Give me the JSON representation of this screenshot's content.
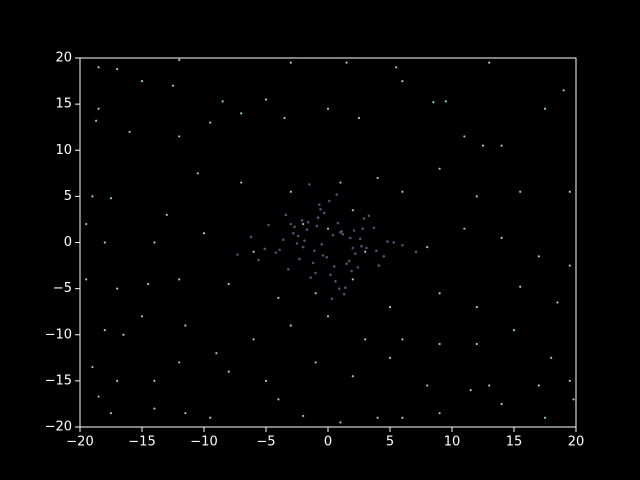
{
  "chart_data": {
    "type": "scatter",
    "series": [
      {
        "color": "#8f8fd0",
        "x": [
          -0.5,
          1.2,
          -2.3,
          0.8,
          3.1,
          -1.7,
          2.4,
          -3.6,
          0.2,
          -0.9,
          1.8,
          -4.2,
          2.9,
          -1.1,
          0.6,
          -2.8,
          4.5,
          -0.3,
          1.5,
          -1.9,
          3.7,
          -5.1,
          0.9,
          -2.1,
          2.2,
          -0.7,
          5.3,
          -3.2,
          1.1,
          -1.4,
          0.4,
          2.7,
          -4.8,
          -0.1,
          3.3,
          -2.5,
          1.9,
          -6.2,
          0.7,
          -1.2,
          2.1,
          -3.9,
          4.1,
          -0.6,
          1.4,
          -2.7,
          6.0,
          -1.6,
          0.3,
          2.6,
          -0.4,
          -3.4,
          1.7,
          4.8,
          -2.0,
          0.1,
          -5.6,
          2.8,
          -1.0,
          3.9,
          -0.8,
          1.3,
          -2.4,
          7.1,
          -3.0,
          0.5,
          -1.5,
          2.0,
          -7.3,
          1.0
        ],
        "y": [
          -0.2,
          0.9,
          -1.8,
          2.1,
          -0.6,
          1.4,
          -2.7,
          0.3,
          -3.5,
          1.8,
          0.5,
          -1.1,
          2.6,
          -0.9,
          -4.2,
          1.0,
          -1.5,
          3.2,
          -2.3,
          0.2,
          1.6,
          -0.7,
          -5.0,
          2.4,
          -1.2,
          4.1,
          0.0,
          -2.9,
          1.2,
          -3.8,
          0.8,
          -0.4,
          1.9,
          -1.6,
          2.9,
          -0.1,
          -3.1,
          0.6,
          5.2,
          -2.2,
          1.3,
          -0.8,
          -2.5,
          3.6,
          -4.9,
          1.7,
          -0.3,
          2.2,
          -6.1,
          0.4,
          -1.4,
          3.0,
          -2.0,
          0.1,
          -0.5,
          4.5,
          -1.9,
          1.5,
          -3.3,
          -0.9,
          2.7,
          -5.6,
          0.7,
          -1.0,
          2.0,
          -2.6,
          6.3,
          -0.6,
          -1.3,
          1.1
        ]
      },
      {
        "color": "#8dd3c7",
        "x": [
          -18.5,
          -17,
          -12,
          -15,
          -12.5,
          -8.5,
          -5,
          -3,
          1.5,
          5.5,
          13,
          19,
          -18.5,
          -18.7,
          -16,
          -12,
          -9.5,
          -7,
          -3.5,
          0,
          2.5,
          6,
          8.5,
          9.5,
          11,
          12.5,
          14,
          17.5,
          -19,
          -17.5,
          -13,
          -10.5,
          -7,
          -3,
          1,
          2,
          4,
          6,
          9,
          12,
          15.5,
          19.5,
          -19.5,
          -18,
          -14,
          -10,
          -6,
          -2,
          0,
          3,
          8,
          11,
          14,
          17,
          19.5,
          -19.5,
          -17,
          -14.5,
          -12,
          -8,
          -4,
          -1,
          2,
          5,
          9,
          12,
          15.5,
          18.5,
          -18,
          -16.5,
          -15,
          -11.5,
          -9,
          -6,
          -3,
          0,
          3,
          6,
          9,
          12,
          15,
          18,
          -19,
          -17,
          -14,
          -12,
          -8,
          -5,
          -1,
          2,
          5,
          8,
          11.5,
          13,
          17,
          19.5,
          -18.5,
          -17.5,
          -14,
          -11.5,
          -9.5,
          -4,
          -2,
          1,
          4,
          6,
          9,
          14,
          17.5,
          19.8
        ],
        "y": [
          19,
          18.8,
          19.8,
          17.5,
          17,
          15.3,
          15.5,
          19.5,
          19.5,
          19,
          19.5,
          16.5,
          14.5,
          13.2,
          12,
          11.5,
          13,
          14,
          13.5,
          14.5,
          13.5,
          17.5,
          15.2,
          15.3,
          11.5,
          10.5,
          10.5,
          14.5,
          5,
          4.8,
          3,
          7.5,
          6.5,
          5.5,
          6.5,
          3.5,
          7,
          5.5,
          8,
          5,
          5.5,
          5.5,
          2,
          0,
          0,
          1,
          -1,
          2,
          1.5,
          -1,
          -0.5,
          1.5,
          0.5,
          -1.5,
          -2.5,
          -4,
          -5,
          -4.5,
          -4,
          -4.5,
          -6,
          -5.5,
          -4,
          -7,
          -5.5,
          -7,
          -4.8,
          -6.5,
          -9.5,
          -10,
          -8,
          -9,
          -12,
          -10.5,
          -9,
          -8,
          -10.5,
          -10.5,
          -11,
          -11,
          -9.5,
          -12.5,
          -13.5,
          -15,
          -15,
          -13,
          -14,
          -15,
          -13,
          -14.5,
          -12.5,
          -15.5,
          -16,
          -15.5,
          -15.5,
          -15,
          -16.7,
          -18.5,
          -18,
          -18.5,
          -19,
          -17,
          -18.8,
          -19.5,
          -19,
          -19,
          -18.5,
          -17.5,
          -19,
          -17
        ]
      }
    ],
    "xlim": [
      -20,
      20
    ],
    "ylim": [
      -20,
      20
    ],
    "xticks": [
      {
        "value": -20,
        "label": "−20"
      },
      {
        "value": -15,
        "label": "−15"
      },
      {
        "value": -10,
        "label": "−10"
      },
      {
        "value": -5,
        "label": "−5"
      },
      0,
      5,
      10,
      15,
      20
    ],
    "yticks": [
      {
        "value": -20,
        "label": "−20"
      },
      {
        "value": -15,
        "label": "−15"
      },
      {
        "value": -10,
        "label": "−10"
      },
      {
        "value": -5,
        "label": "−5"
      },
      0,
      5,
      10,
      15,
      20
    ]
  }
}
